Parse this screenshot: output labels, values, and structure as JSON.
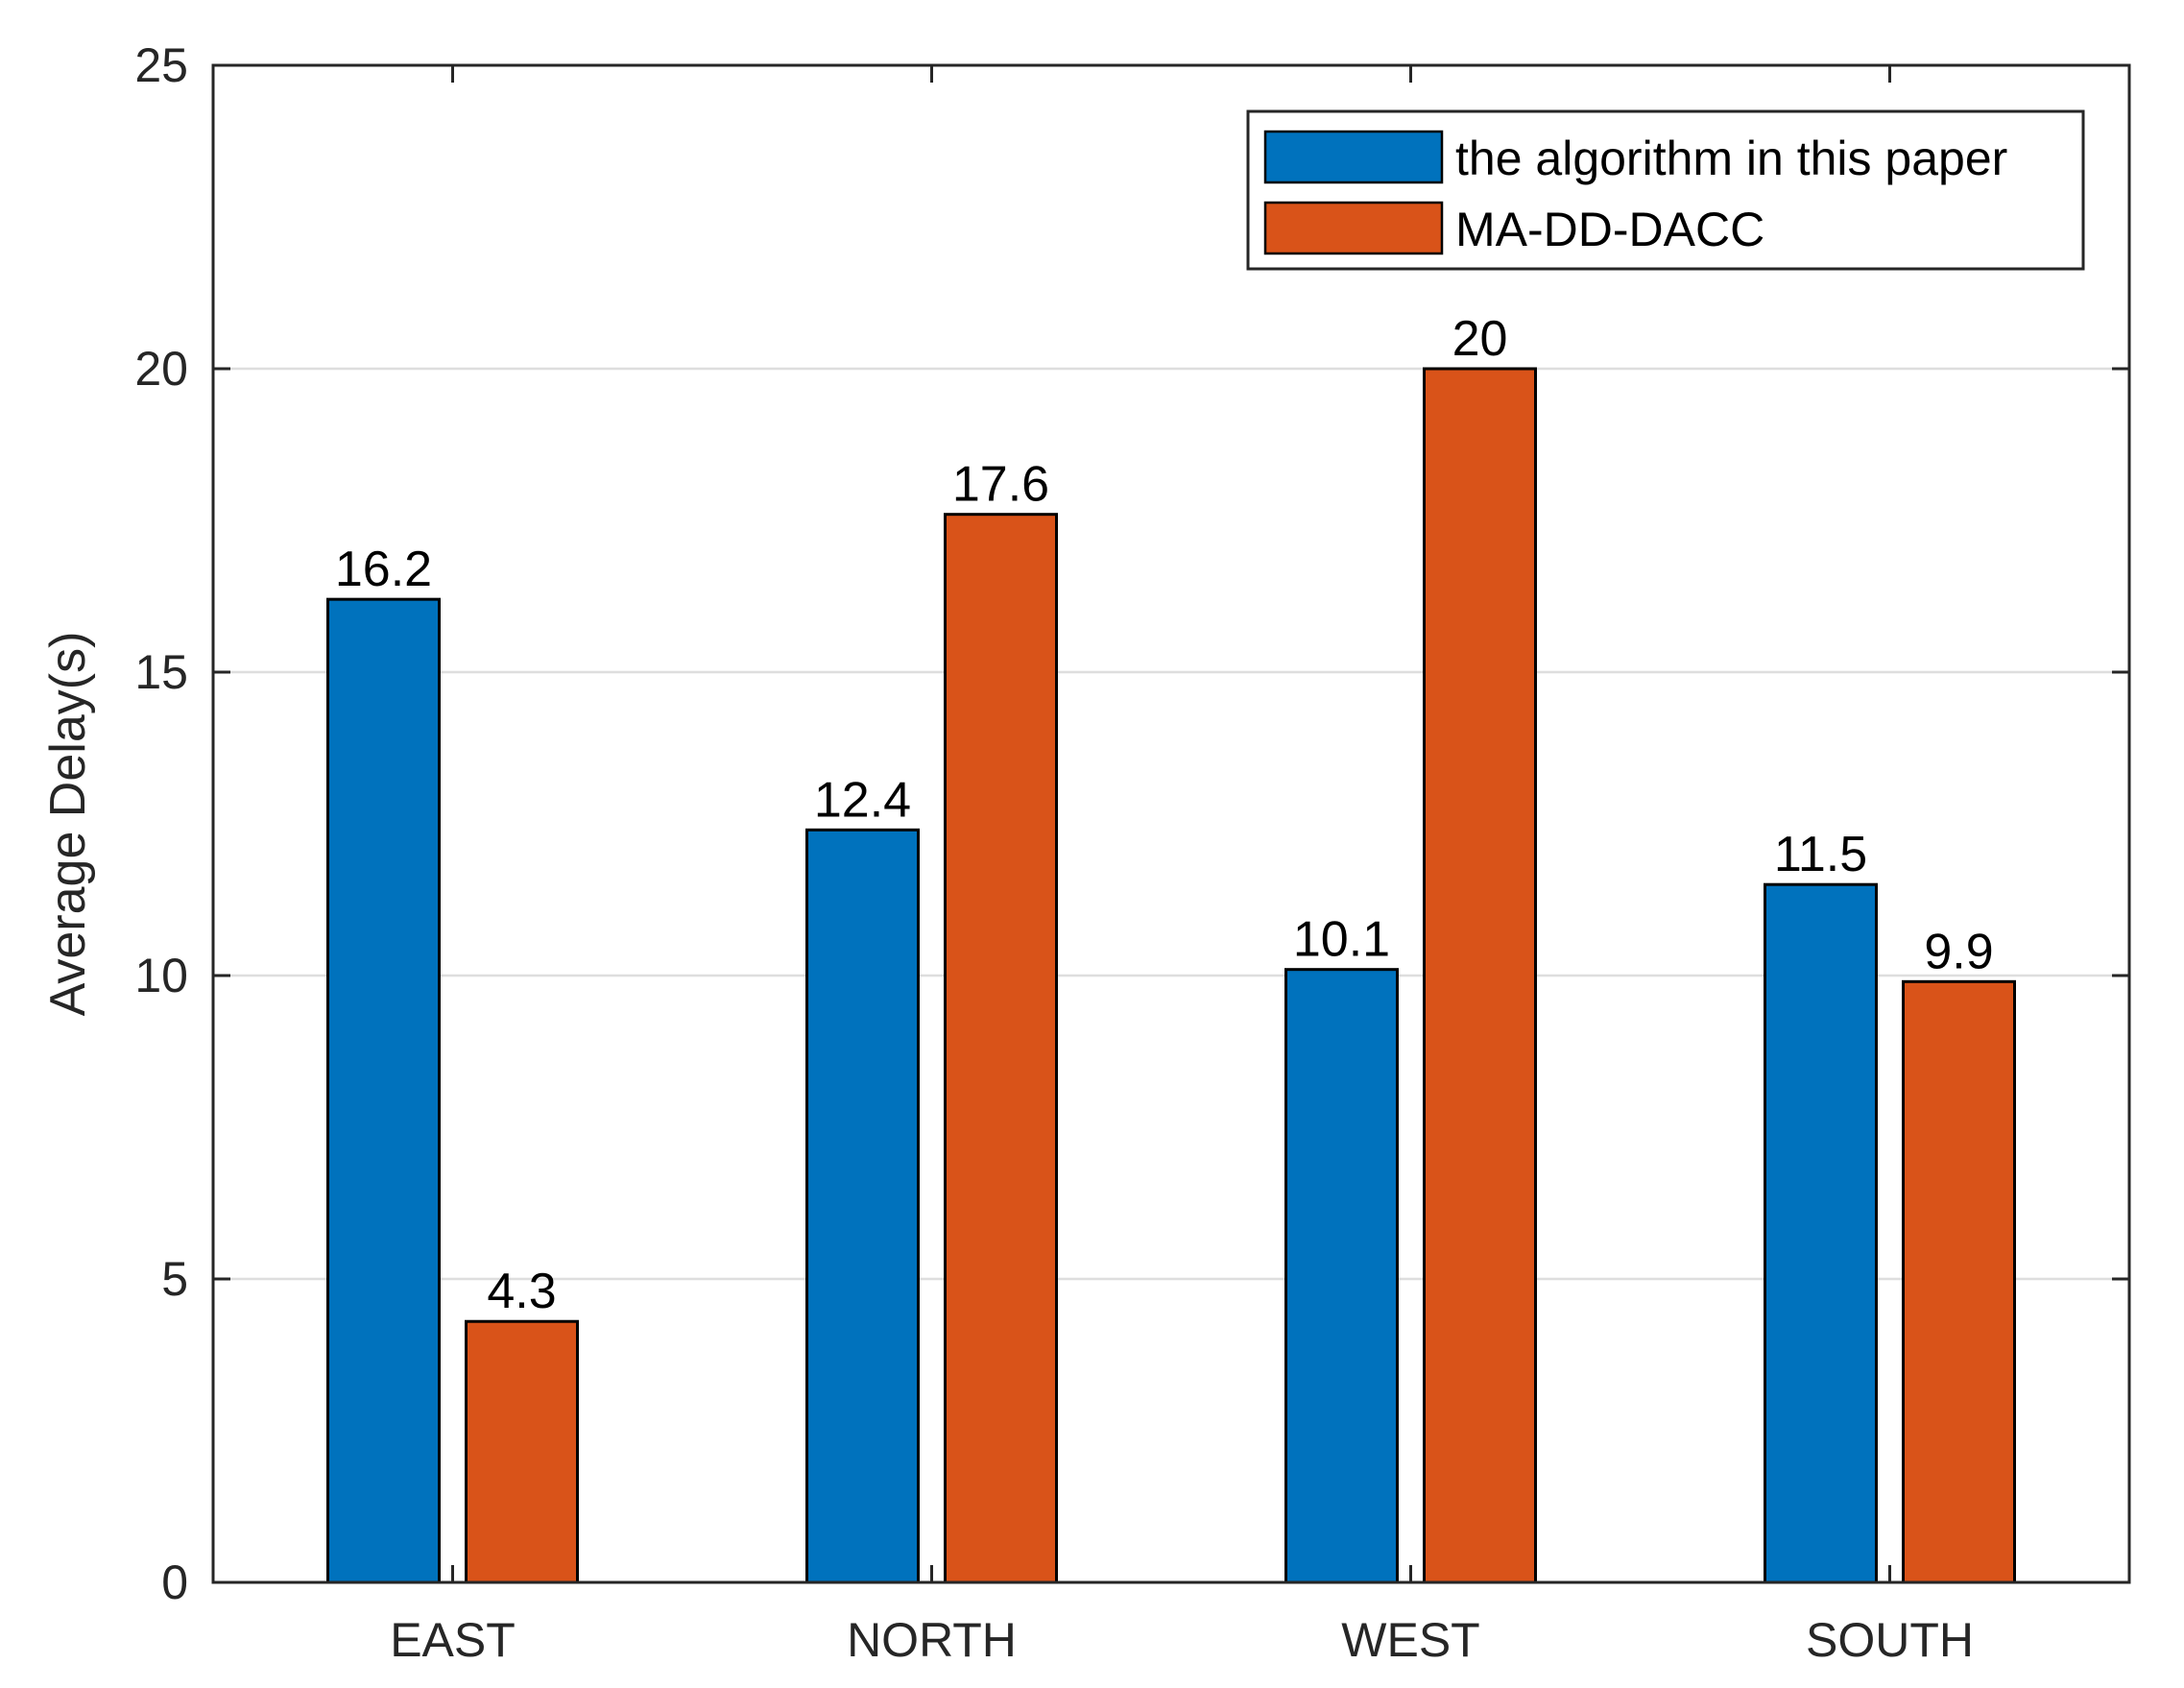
{
  "chart_data": {
    "type": "bar",
    "title": "",
    "xlabel": "",
    "ylabel": "Average Delay(s)",
    "categories": [
      "EAST",
      "NORTH",
      "WEST",
      "SOUTH"
    ],
    "series": [
      {
        "name": "the algorithm in this paper",
        "color": "#0072BD",
        "values": [
          16.2,
          12.4,
          10.1,
          11.5
        ]
      },
      {
        "name": "MA-DD-DACC",
        "color": "#D95319",
        "values": [
          4.3,
          17.6,
          20,
          9.9
        ]
      }
    ],
    "data_labels": [
      [
        "16.2",
        "12.4",
        "10.1",
        "11.5"
      ],
      [
        "4.3",
        "17.6",
        "20",
        "9.9"
      ]
    ],
    "ylim": [
      0,
      25
    ],
    "yticks": [
      0,
      5,
      10,
      15,
      20,
      25
    ],
    "ytick_labels": [
      "0",
      "5",
      "10",
      "15",
      "20",
      "25"
    ],
    "grid": true,
    "grid_color": "#dedede",
    "legend_position": "top-right"
  }
}
